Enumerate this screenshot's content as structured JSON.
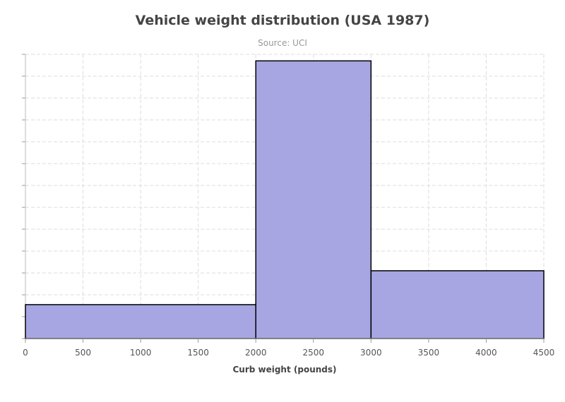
{
  "chart_data": {
    "type": "bar",
    "title": "Vehicle weight distribution (USA 1987)",
    "subtitle": "Source: UCI",
    "xlabel": "Curb weight (pounds)",
    "ylabel": "",
    "xlim": [
      0,
      4500
    ],
    "ylim": [
      0,
      13
    ],
    "x_ticks": [
      0,
      500,
      1000,
      1500,
      2000,
      2500,
      3000,
      3500,
      4000,
      4500
    ],
    "y_tick_count": 13,
    "y_tick_labels_shown": false,
    "grid": true,
    "bins": [
      {
        "x0": 0,
        "x1": 2000,
        "count": 1.55
      },
      {
        "x0": 2000,
        "x1": 3000,
        "count": 12.7
      },
      {
        "x0": 3000,
        "x1": 4500,
        "count": 3.1
      }
    ],
    "bar_color": "#a7a6e3",
    "bar_border_color": "#000000",
    "grid_color": "#dddddd"
  }
}
